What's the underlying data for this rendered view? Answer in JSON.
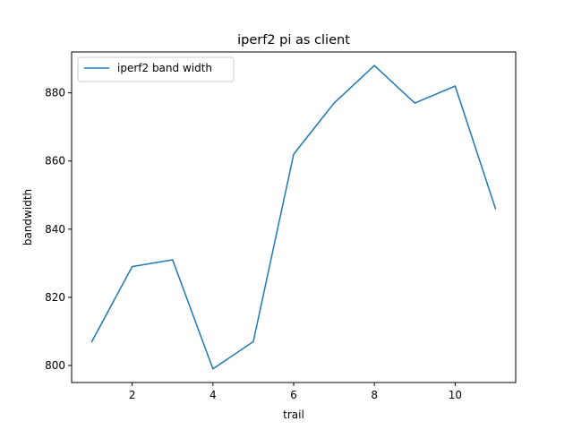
{
  "chart_data": {
    "type": "line",
    "title": "iperf2 pi as client",
    "xlabel": "trail",
    "ylabel": "bandwidth",
    "x": [
      1,
      2,
      3,
      4,
      5,
      6,
      7,
      8,
      9,
      10,
      11
    ],
    "series": [
      {
        "name": "iperf2 band width",
        "color": "#1f77b4",
        "values": [
          807,
          829,
          831,
          799,
          807,
          862,
          877,
          888,
          877,
          882,
          846
        ]
      }
    ],
    "xlim": [
      0.5,
      11.5
    ],
    "ylim": [
      795,
      892
    ],
    "xticks": [
      2,
      4,
      6,
      8,
      10
    ],
    "yticks": [
      800,
      820,
      840,
      860,
      880
    ],
    "grid": false,
    "legend_position": "upper left"
  }
}
